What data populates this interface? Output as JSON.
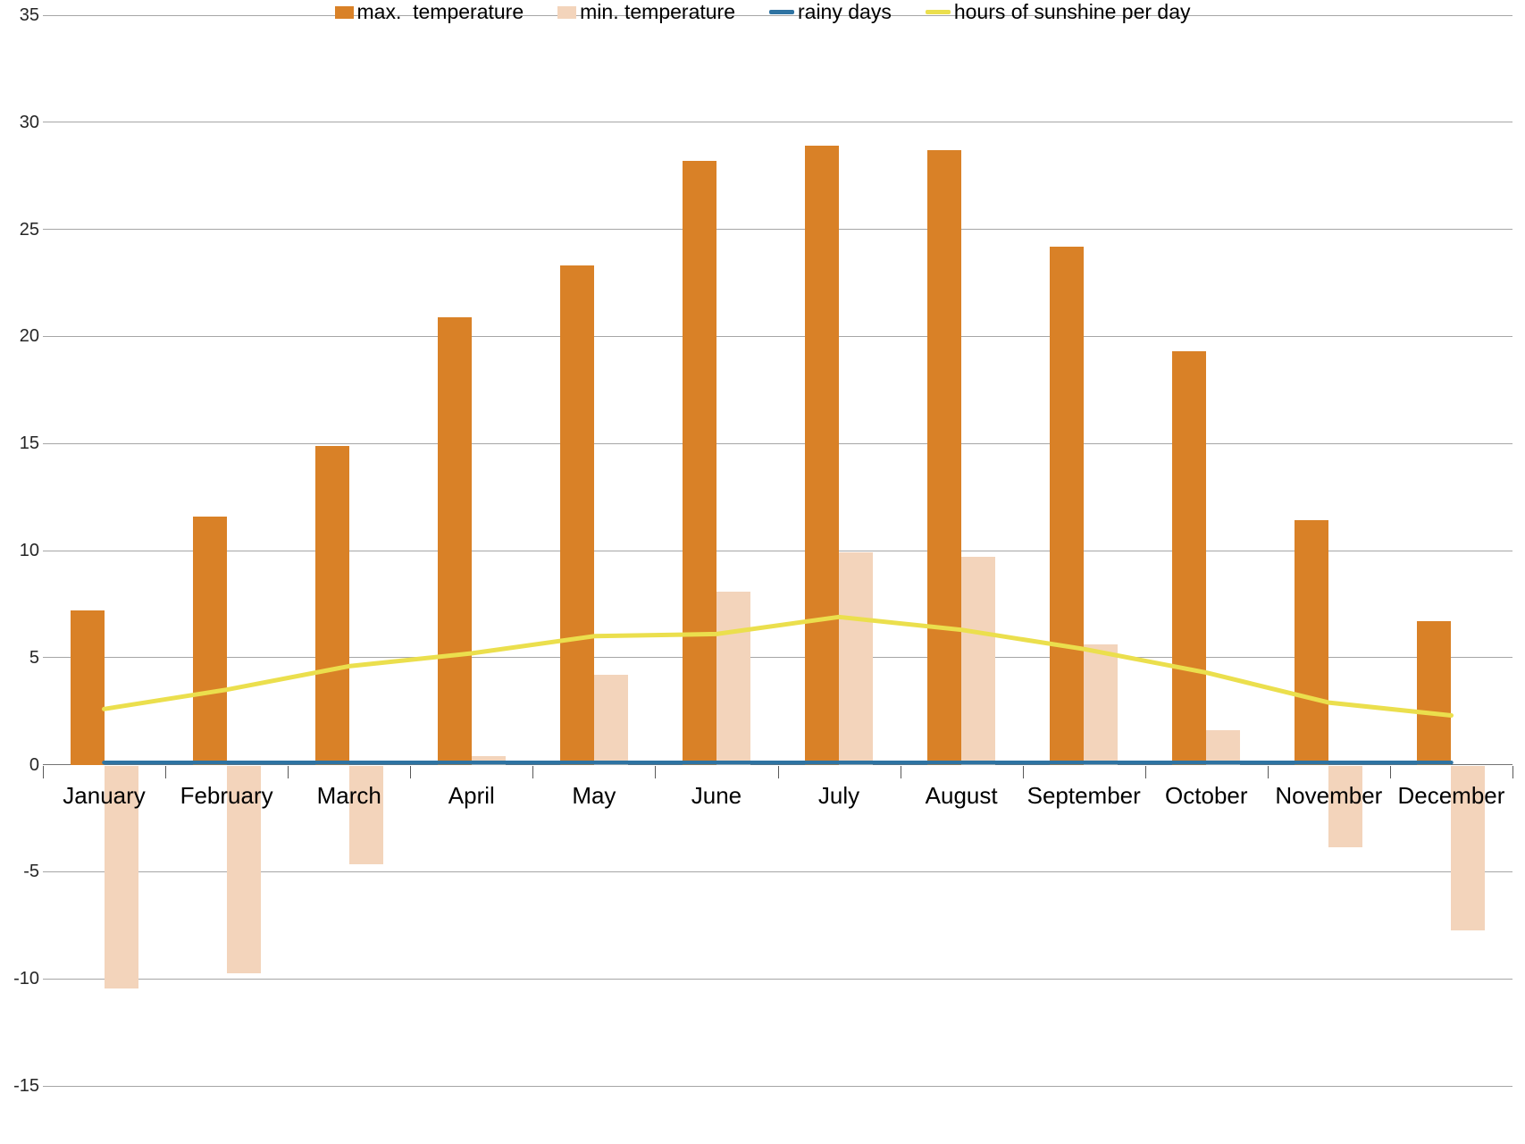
{
  "chart_data": {
    "type": "bar",
    "subtype": "combo-bar-line",
    "title": "",
    "xlabel": "",
    "ylabel": "",
    "categories": [
      "January",
      "February",
      "March",
      "April",
      "May",
      "June",
      "July",
      "August",
      "September",
      "October",
      "November",
      "December"
    ],
    "y_tick_labels": [
      "35",
      "30",
      "25",
      "20",
      "15",
      "10",
      "5",
      "0",
      "-5",
      "-10",
      "-15"
    ],
    "ylim": [
      -15,
      35
    ],
    "ytick_step": 5,
    "grid": true,
    "legend_position": "bottom",
    "colors": {
      "background": "#FFFFFF",
      "gridline": "#A6A6A6",
      "zero_line": "#737373",
      "tick": "#595959",
      "axis_text": "#262626",
      "month_text": "#000000"
    },
    "series": [
      {
        "name": "max.  temperature",
        "type": "bar",
        "color": "#D98127",
        "values": [
          7.2,
          11.6,
          14.9,
          20.9,
          23.3,
          28.2,
          28.9,
          28.7,
          24.2,
          19.3,
          11.4,
          6.7
        ]
      },
      {
        "name": "min. temperature",
        "type": "bar",
        "color": "#F3D4BB",
        "values": [
          -10.4,
          -9.7,
          -4.6,
          0.4,
          4.2,
          8.1,
          9.9,
          9.7,
          5.6,
          1.6,
          -3.8,
          -7.7
        ]
      },
      {
        "name": "rainy days",
        "type": "line",
        "color": "#2E73A2",
        "values": [
          0.1,
          0.1,
          0.1,
          0.1,
          0.1,
          0.1,
          0.1,
          0.1,
          0.1,
          0.1,
          0.1,
          0.1
        ]
      },
      {
        "name": "hours of sunshine per day",
        "type": "line",
        "color": "#EBDF4D",
        "values": [
          2.6,
          3.5,
          4.6,
          5.2,
          6.0,
          6.1,
          6.9,
          6.3,
          5.4,
          4.3,
          2.9,
          2.3
        ]
      }
    ]
  }
}
